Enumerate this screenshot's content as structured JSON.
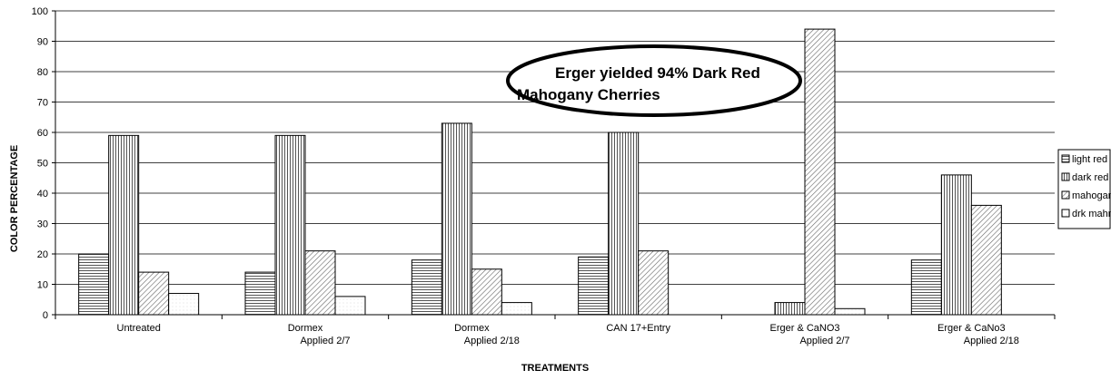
{
  "chart_data": {
    "type": "bar",
    "title": "",
    "xlabel": "TREATMENTS",
    "ylabel": "COLOR PERCENTAGE",
    "ylim": [
      0,
      100
    ],
    "yticks": [
      0,
      10,
      20,
      30,
      40,
      50,
      60,
      70,
      80,
      90,
      100
    ],
    "grid": true,
    "legend_position": "right",
    "categories": [
      [
        "Untreated"
      ],
      [
        "Dormex",
        "Applied 2/7"
      ],
      [
        "Dormex",
        "Applied 2/18"
      ],
      [
        "CAN 17+Entry"
      ],
      [
        "Erger & CaNO3",
        "Applied 2/7"
      ],
      [
        "Erger & CaNo3",
        "Applied 2/18"
      ]
    ],
    "series": [
      {
        "name": "light red",
        "values": [
          20,
          14,
          18,
          19,
          null,
          18
        ],
        "pattern": "horizontal"
      },
      {
        "name": "dark red",
        "values": [
          59,
          59,
          63,
          60,
          4,
          46
        ],
        "pattern": "vertical"
      },
      {
        "name": "mahogany",
        "values": [
          14,
          21,
          15,
          21,
          94,
          36
        ],
        "pattern": "diagonal"
      },
      {
        "name": "drk mahny",
        "values": [
          7,
          6,
          4,
          null,
          2,
          null
        ],
        "pattern": "dots"
      }
    ],
    "annotation": {
      "lines": [
        "Erger yielded 94% Dark Red",
        "Mahogany Cherries"
      ]
    }
  }
}
